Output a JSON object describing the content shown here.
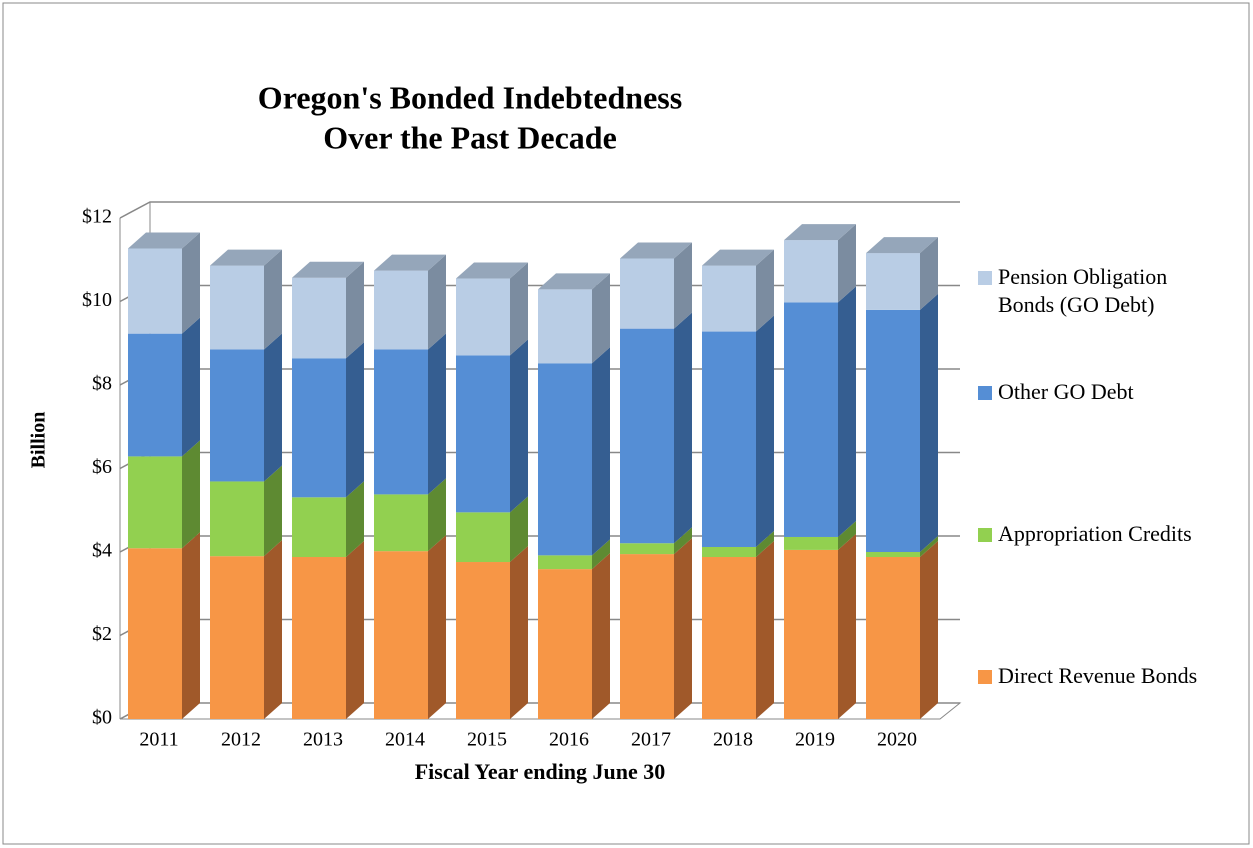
{
  "chart_data": {
    "type": "bar3d_stacked",
    "title": "Oregon's Bonded Indebtedness",
    "subtitle": "Over the Past Decade",
    "y_axis_label": "Billion",
    "x_axis_label": "Fiscal Year ending June 30",
    "categories": [
      "2011",
      "2012",
      "2013",
      "2014",
      "2015",
      "2016",
      "2017",
      "2018",
      "2019",
      "2020"
    ],
    "series": [
      {
        "name": "Direct Revenue Bonds",
        "color": "#f79646",
        "side_color": "#a0592a",
        "values": [
          4.09,
          3.9,
          3.88,
          4.02,
          3.76,
          3.59,
          3.95,
          3.88,
          4.05,
          3.88
        ]
      },
      {
        "name": "Appropriation Credits",
        "color": "#92d050",
        "side_color": "#5e8a32",
        "values": [
          2.2,
          1.79,
          1.43,
          1.36,
          1.19,
          0.33,
          0.26,
          0.24,
          0.31,
          0.12
        ]
      },
      {
        "name": "Other GO Debt",
        "color": "#558ed5",
        "side_color": "#355e91",
        "values": [
          2.94,
          3.16,
          3.33,
          3.47,
          3.76,
          4.6,
          5.14,
          5.16,
          5.62,
          5.8
        ]
      },
      {
        "name": "Pension Obligation Bonds (GO Debt)",
        "color": "#b9cde5",
        "side_color": "#7b8ca0",
        "values": [
          2.04,
          2.01,
          1.93,
          1.89,
          1.84,
          1.77,
          1.68,
          1.58,
          1.49,
          1.36
        ]
      }
    ],
    "ylim": [
      0,
      12
    ],
    "yticks": [
      {
        "value": 0,
        "label": "$0"
      },
      {
        "value": 2,
        "label": "$2"
      },
      {
        "value": 4,
        "label": "$4"
      },
      {
        "value": 6,
        "label": "$6"
      },
      {
        "value": 8,
        "label": "$8"
      },
      {
        "value": 10,
        "label": "$10"
      },
      {
        "value": 12,
        "label": "$12"
      }
    ],
    "grid": true,
    "legend": "right"
  }
}
